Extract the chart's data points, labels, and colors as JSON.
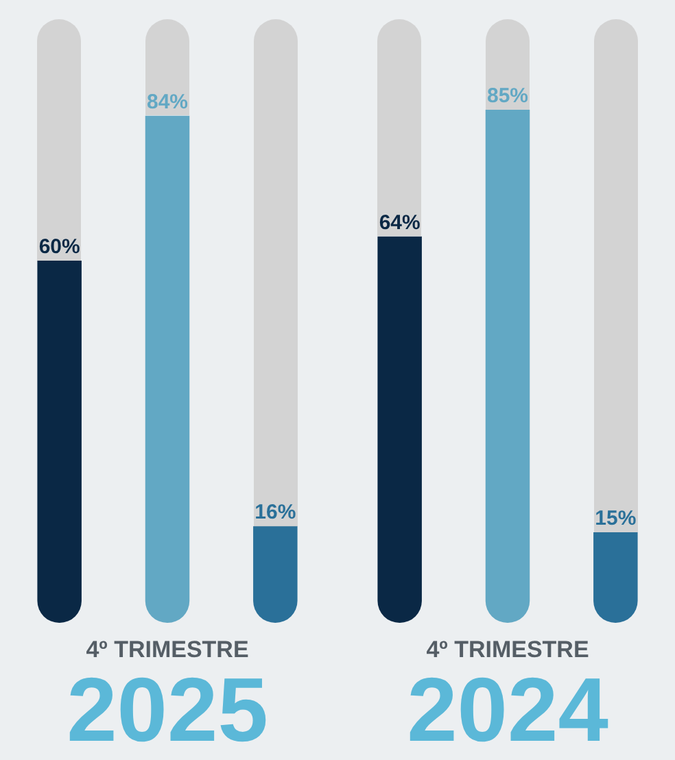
{
  "chart_data": [
    {
      "type": "bar",
      "title": "2025",
      "subtitle": "4º TRIMESTRE",
      "categories": [
        null,
        null,
        null
      ],
      "values": [
        60,
        84,
        16
      ],
      "colors": [
        "#0a2845",
        "#62a8c4",
        "#2a7099"
      ],
      "value_labels": [
        "60%",
        "84%",
        "16%"
      ],
      "ylim": [
        0,
        100
      ],
      "tick_labels": false,
      "legend": false
    },
    {
      "type": "bar",
      "title": "2024",
      "subtitle": "4º TRIMESTRE",
      "categories": [
        null,
        null,
        null
      ],
      "values": [
        64,
        85,
        15
      ],
      "colors": [
        "#0a2845",
        "#62a8c4",
        "#2a7099"
      ],
      "value_labels": [
        "64%",
        "85%",
        "15%"
      ],
      "ylim": [
        0,
        100
      ],
      "tick_labels": false,
      "legend": false
    }
  ]
}
